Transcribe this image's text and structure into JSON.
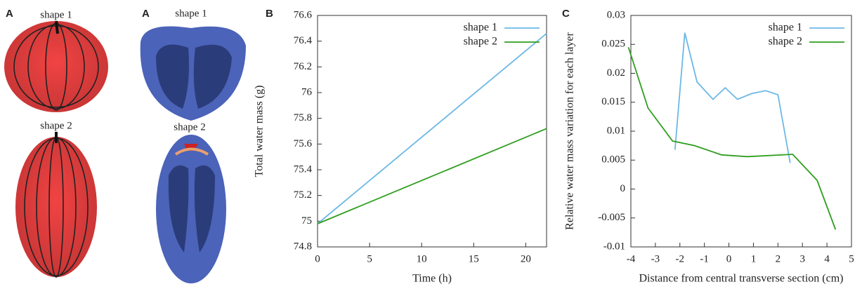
{
  "figure": {
    "left_panel_labels": [
      "A",
      "A"
    ],
    "shape_labels": [
      "shape 1",
      "shape 2",
      "shape 1",
      "shape 2"
    ]
  },
  "chart_data": [
    {
      "type": "line",
      "panel_label": "B",
      "x_label": "Time (h)",
      "y_label": "Total water mass (g)",
      "xlim": [
        0,
        22
      ],
      "xticks": [
        0,
        5,
        10,
        15,
        20
      ],
      "ylim": [
        74.8,
        76.6
      ],
      "yticks": [
        74.8,
        75,
        75.2,
        75.4,
        75.6,
        75.8,
        76,
        76.2,
        76.4,
        76.6
      ],
      "legend": "top-right",
      "series": [
        {
          "name": "shape 1",
          "color": "#6cb8e6",
          "x": [
            0,
            22
          ],
          "values": [
            74.98,
            76.46
          ]
        },
        {
          "name": "shape 2",
          "color": "#2f9e1f",
          "x": [
            0,
            22
          ],
          "values": [
            74.98,
            75.72
          ]
        }
      ]
    },
    {
      "type": "line",
      "panel_label": "C",
      "x_label": "Distance from central transverse section (cm)",
      "y_label": "Relative water mass variation for each layer",
      "xlim": [
        -4,
        5
      ],
      "xticks": [
        -4,
        -3,
        -2,
        -1,
        0,
        1,
        2,
        3,
        4,
        5
      ],
      "ylim": [
        -0.01,
        0.03
      ],
      "yticks": [
        -0.01,
        -0.005,
        0,
        0.005,
        0.01,
        0.015,
        0.02,
        0.025,
        0.03
      ],
      "legend": "top-right",
      "series": [
        {
          "name": "shape 1",
          "color": "#6cb8e6",
          "x": [
            -2.2,
            -1.8,
            -1.3,
            -0.65,
            -0.15,
            0.35,
            0.93,
            1.5,
            2.0,
            2.5
          ],
          "values": [
            0.0068,
            0.027,
            0.0185,
            0.0155,
            0.0175,
            0.0155,
            0.0165,
            0.017,
            0.0163,
            0.0045
          ]
        },
        {
          "name": "shape 2",
          "color": "#2f9e1f",
          "x": [
            -4.1,
            -3.3,
            -2.3,
            -1.4,
            -0.3,
            0.75,
            2.6,
            3.6,
            4.35
          ],
          "values": [
            0.0245,
            0.014,
            0.0083,
            0.0075,
            0.0059,
            0.0056,
            0.006,
            0.0015,
            -0.007
          ]
        }
      ]
    }
  ]
}
